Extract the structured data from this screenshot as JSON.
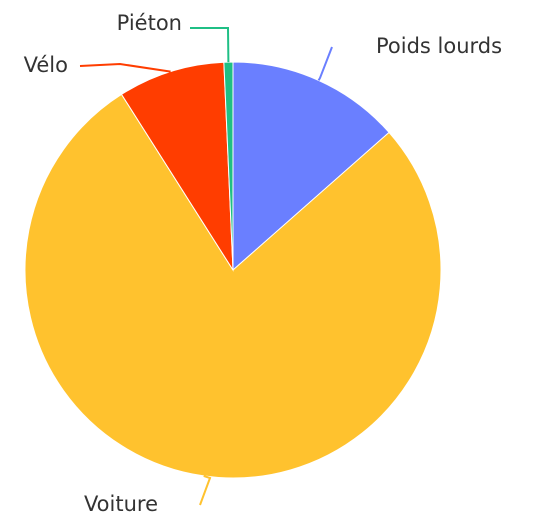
{
  "chart_data": {
    "type": "pie",
    "title": "",
    "legend": "none",
    "labels": [
      "Poids lourds",
      "Voiture",
      "Vélo",
      "Piéton"
    ],
    "values": [
      13.5,
      77.5,
      8.3,
      0.7
    ],
    "colors": [
      "#6a7fff",
      "#ffc22e",
      "#ff3d00",
      "#1fbf85"
    ],
    "start_angle_deg": 0,
    "direction": "clockwise"
  }
}
